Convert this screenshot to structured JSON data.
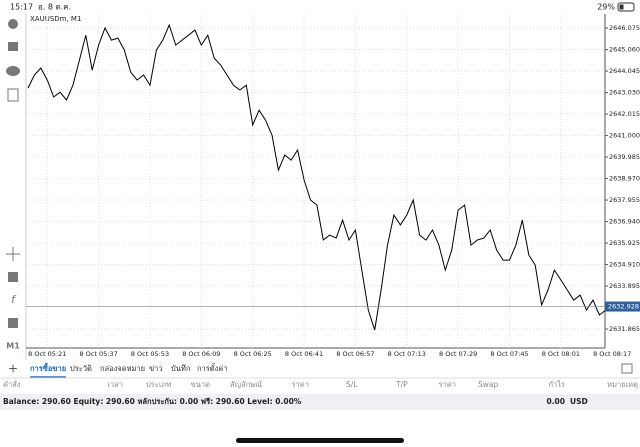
{
  "status_bar": {
    "time": "15:17",
    "date": "อ. 8 ต.ค.",
    "battery": "29%"
  },
  "chart_data": {
    "type": "line",
    "title": "XAUUSDm, M1",
    "categories": [
      null,
      null,
      null,
      "8 Oct 05:21",
      null,
      null,
      null,
      null,
      null,
      null,
      null,
      "8 Oct 05:37",
      null,
      null,
      null,
      null,
      null,
      null,
      null,
      "8 Oct 05:53",
      null,
      null,
      null,
      null,
      null,
      null,
      null,
      "8 Oct 06:09",
      null,
      null,
      null,
      null,
      null,
      null,
      null,
      "8 Oct 06:25",
      null,
      null,
      null,
      null,
      null,
      null,
      null,
      "8 Oct 06:41",
      null,
      null,
      null,
      null,
      null,
      null,
      null,
      "8 Oct 06:57",
      null,
      null,
      null,
      null,
      null,
      null,
      null,
      "8 Oct 07:13",
      null,
      null,
      null,
      null,
      null,
      null,
      null,
      "8 Oct 07:29",
      null,
      null,
      null,
      null,
      null,
      null,
      null,
      "8 Oct 07:45",
      null,
      null,
      null,
      null,
      null,
      null,
      null,
      "8 Oct 08:01",
      null,
      null,
      null,
      null,
      null,
      null,
      null,
      "8 Oct 08:17"
    ],
    "values": [
      2643.24,
      2643.86,
      2644.19,
      2643.62,
      2642.82,
      2643.05,
      2642.68,
      2643.38,
      2644.56,
      2645.74,
      2644.09,
      2645.27,
      2646.08,
      2645.51,
      2645.6,
      2645.04,
      2644.0,
      2643.62,
      2643.86,
      2643.38,
      2645.04,
      2645.51,
      2646.22,
      2645.27,
      2645.51,
      2645.74,
      2645.98,
      2645.27,
      2645.74,
      2644.66,
      2644.33,
      2643.86,
      2643.38,
      2643.15,
      2643.38,
      2641.5,
      2642.2,
      2641.73,
      2641.02,
      2639.37,
      2640.08,
      2639.84,
      2640.32,
      2638.9,
      2637.96,
      2637.72,
      2636.07,
      2636.3,
      2636.16,
      2637.01,
      2636.07,
      2636.54,
      2634.65,
      2632.76,
      2631.82,
      2633.71,
      2635.83,
      2637.25,
      2636.78,
      2637.25,
      2637.96,
      2636.3,
      2636.07,
      2636.54,
      2635.83,
      2634.65,
      2635.59,
      2637.48,
      2637.72,
      2635.83,
      2636.07,
      2636.16,
      2636.54,
      2635.59,
      2635.12,
      2635.12,
      2635.83,
      2637.01,
      2635.36,
      2634.89,
      2633.0,
      2633.71,
      2634.65,
      2634.18,
      2633.71,
      2633.23,
      2633.47,
      2632.76,
      2633.23,
      2632.53,
      2632.76,
      null
    ],
    "color": "#000000",
    "ylim": [
      2630.97,
      2646.74
    ],
    "yticks": [
      2646.075,
      {
        "value": 2645.06,
        "label": "2645.060"
      },
      2644.045,
      {
        "value": 2643.03,
        "label": "2643.030"
      },
      2642.015,
      {
        "value": 2641,
        "label": "2641.000"
      },
      2639.985,
      {
        "value": 2638.97,
        "label": "2638.970"
      },
      2637.955,
      {
        "value": 2636.94,
        "label": "2636.940"
      },
      2635.925,
      {
        "value": 2634.91,
        "label": "2634.910"
      },
      2633.895,
      2631.865
    ],
    "current_price": 2632.928,
    "grid": true,
    "timeframe": "M1"
  },
  "tabs": [
    "การซื้อขาย",
    "ประวัติ",
    "กล่องจดหมาย",
    "ข่าว",
    "บันทึก",
    "การตั้งค่า"
  ],
  "columns": [
    "คำสั่ง",
    "เวลา",
    "ประเภท",
    "ขนาด",
    "สัญลักษณ์",
    "ราคา",
    "S/L",
    "T/P",
    "ราคา",
    "Swap",
    "กำไร",
    "หมายเหตุ"
  ],
  "balance": {
    "text": "Balance: 290.60 Equity: 290.60 หลักประกัน: 0.00 ฟรี: 290.60 Level: 0.00%",
    "profit": "0.00",
    "currency": "USD"
  }
}
